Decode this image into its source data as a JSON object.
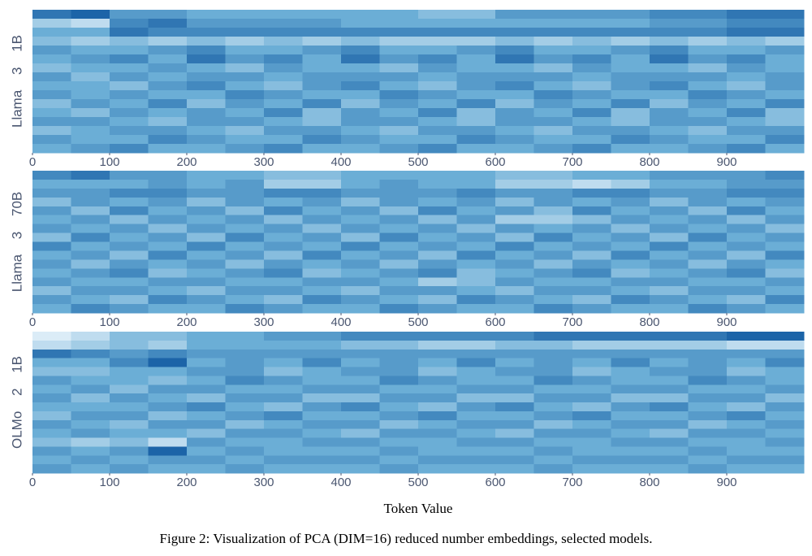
{
  "caption": "Figure 2: Visualization of PCA (DIM=16) reduced number embeddings, selected models.",
  "colorscale": [
    "#f7fbff",
    "#6baed6",
    "#08519c"
  ],
  "chart_data": [
    {
      "type": "heatmap",
      "ylabel": "Llama 3 1B",
      "x": [
        0,
        50,
        100,
        150,
        200,
        250,
        300,
        350,
        400,
        450,
        500,
        550,
        600,
        650,
        700,
        750,
        800,
        850,
        900,
        950
      ],
      "xlim": [
        0,
        1000
      ],
      "xticks": [
        0,
        100,
        200,
        300,
        400,
        500,
        600,
        700,
        800,
        900
      ],
      "values": [
        [
          0.8,
          0.9,
          0.6,
          0.6,
          0.5,
          0.5,
          0.5,
          0.5,
          0.5,
          0.5,
          0.4,
          0.4,
          0.6,
          0.6,
          0.6,
          0.6,
          0.7,
          0.7,
          0.8,
          0.8
        ],
        [
          0.3,
          0.2,
          0.7,
          0.8,
          0.6,
          0.6,
          0.6,
          0.6,
          0.5,
          0.5,
          0.5,
          0.5,
          0.5,
          0.5,
          0.5,
          0.5,
          0.6,
          0.6,
          0.7,
          0.7
        ],
        [
          0.5,
          0.5,
          0.8,
          0.7,
          0.7,
          0.7,
          0.7,
          0.7,
          0.7,
          0.7,
          0.7,
          0.7,
          0.7,
          0.7,
          0.7,
          0.7,
          0.7,
          0.7,
          0.8,
          0.8
        ],
        [
          0.4,
          0.3,
          0.4,
          0.3,
          0.4,
          0.3,
          0.4,
          0.3,
          0.4,
          0.3,
          0.3,
          0.3,
          0.4,
          0.3,
          0.4,
          0.3,
          0.4,
          0.3,
          0.4,
          0.3
        ],
        [
          0.6,
          0.5,
          0.5,
          0.6,
          0.7,
          0.5,
          0.5,
          0.6,
          0.7,
          0.5,
          0.5,
          0.6,
          0.7,
          0.5,
          0.5,
          0.6,
          0.7,
          0.5,
          0.5,
          0.6
        ],
        [
          0.5,
          0.6,
          0.7,
          0.5,
          0.8,
          0.6,
          0.7,
          0.5,
          0.8,
          0.6,
          0.7,
          0.5,
          0.8,
          0.6,
          0.7,
          0.5,
          0.8,
          0.6,
          0.7,
          0.5
        ],
        [
          0.4,
          0.5,
          0.5,
          0.6,
          0.5,
          0.4,
          0.6,
          0.5,
          0.5,
          0.4,
          0.6,
          0.5,
          0.5,
          0.4,
          0.6,
          0.5,
          0.5,
          0.4,
          0.6,
          0.5
        ],
        [
          0.6,
          0.4,
          0.6,
          0.5,
          0.6,
          0.6,
          0.5,
          0.6,
          0.6,
          0.6,
          0.5,
          0.6,
          0.6,
          0.6,
          0.5,
          0.6,
          0.6,
          0.6,
          0.5,
          0.6
        ],
        [
          0.5,
          0.5,
          0.4,
          0.6,
          0.7,
          0.5,
          0.4,
          0.6,
          0.7,
          0.5,
          0.4,
          0.6,
          0.7,
          0.5,
          0.4,
          0.6,
          0.7,
          0.5,
          0.4,
          0.6
        ],
        [
          0.6,
          0.5,
          0.6,
          0.5,
          0.5,
          0.7,
          0.6,
          0.5,
          0.5,
          0.7,
          0.6,
          0.5,
          0.5,
          0.7,
          0.6,
          0.5,
          0.5,
          0.7,
          0.6,
          0.5
        ],
        [
          0.4,
          0.6,
          0.5,
          0.7,
          0.4,
          0.6,
          0.5,
          0.7,
          0.4,
          0.6,
          0.5,
          0.7,
          0.4,
          0.6,
          0.5,
          0.7,
          0.4,
          0.6,
          0.5,
          0.7
        ],
        [
          0.5,
          0.4,
          0.6,
          0.5,
          0.6,
          0.5,
          0.7,
          0.4,
          0.6,
          0.5,
          0.7,
          0.4,
          0.6,
          0.5,
          0.7,
          0.4,
          0.6,
          0.5,
          0.7,
          0.4
        ],
        [
          0.6,
          0.6,
          0.5,
          0.4,
          0.6,
          0.6,
          0.5,
          0.4,
          0.6,
          0.6,
          0.5,
          0.4,
          0.6,
          0.6,
          0.5,
          0.4,
          0.6,
          0.6,
          0.5,
          0.4
        ],
        [
          0.4,
          0.5,
          0.6,
          0.6,
          0.5,
          0.4,
          0.6,
          0.6,
          0.5,
          0.4,
          0.6,
          0.6,
          0.5,
          0.4,
          0.6,
          0.6,
          0.5,
          0.4,
          0.6,
          0.6
        ],
        [
          0.6,
          0.5,
          0.5,
          0.7,
          0.6,
          0.5,
          0.5,
          0.7,
          0.6,
          0.5,
          0.5,
          0.7,
          0.6,
          0.5,
          0.5,
          0.7,
          0.6,
          0.5,
          0.5,
          0.7
        ],
        [
          0.5,
          0.6,
          0.7,
          0.5,
          0.5,
          0.6,
          0.7,
          0.5,
          0.5,
          0.6,
          0.7,
          0.5,
          0.5,
          0.6,
          0.7,
          0.5,
          0.5,
          0.6,
          0.7,
          0.5
        ]
      ]
    },
    {
      "type": "heatmap",
      "ylabel": "Llama 3 70B",
      "x": [
        0,
        50,
        100,
        150,
        200,
        250,
        300,
        350,
        400,
        450,
        500,
        550,
        600,
        650,
        700,
        750,
        800,
        850,
        900,
        950
      ],
      "xlim": [
        0,
        1000
      ],
      "xticks": [
        0,
        100,
        200,
        300,
        400,
        500,
        600,
        700,
        800,
        900
      ],
      "values": [
        [
          0.7,
          0.8,
          0.6,
          0.6,
          0.5,
          0.5,
          0.4,
          0.4,
          0.5,
          0.5,
          0.5,
          0.5,
          0.4,
          0.4,
          0.5,
          0.5,
          0.6,
          0.6,
          0.6,
          0.7
        ],
        [
          0.5,
          0.5,
          0.5,
          0.6,
          0.5,
          0.6,
          0.3,
          0.3,
          0.5,
          0.6,
          0.5,
          0.5,
          0.3,
          0.3,
          0.2,
          0.3,
          0.5,
          0.5,
          0.6,
          0.6
        ],
        [
          0.6,
          0.6,
          0.7,
          0.7,
          0.6,
          0.6,
          0.7,
          0.7,
          0.6,
          0.6,
          0.6,
          0.7,
          0.6,
          0.6,
          0.7,
          0.7,
          0.6,
          0.6,
          0.7,
          0.7
        ],
        [
          0.4,
          0.6,
          0.5,
          0.6,
          0.4,
          0.6,
          0.5,
          0.6,
          0.4,
          0.6,
          0.5,
          0.6,
          0.4,
          0.6,
          0.5,
          0.6,
          0.4,
          0.6,
          0.5,
          0.6
        ],
        [
          0.6,
          0.4,
          0.7,
          0.5,
          0.6,
          0.4,
          0.7,
          0.5,
          0.6,
          0.4,
          0.7,
          0.5,
          0.6,
          0.4,
          0.7,
          0.5,
          0.6,
          0.4,
          0.7,
          0.5
        ],
        [
          0.5,
          0.6,
          0.4,
          0.6,
          0.5,
          0.6,
          0.4,
          0.6,
          0.5,
          0.6,
          0.4,
          0.6,
          0.3,
          0.3,
          0.4,
          0.6,
          0.5,
          0.6,
          0.4,
          0.6
        ],
        [
          0.6,
          0.5,
          0.6,
          0.4,
          0.6,
          0.5,
          0.6,
          0.4,
          0.6,
          0.5,
          0.6,
          0.4,
          0.6,
          0.5,
          0.6,
          0.4,
          0.6,
          0.5,
          0.6,
          0.4
        ],
        [
          0.4,
          0.7,
          0.5,
          0.6,
          0.4,
          0.7,
          0.5,
          0.6,
          0.4,
          0.7,
          0.5,
          0.6,
          0.4,
          0.7,
          0.5,
          0.6,
          0.4,
          0.7,
          0.5,
          0.6
        ],
        [
          0.7,
          0.5,
          0.6,
          0.5,
          0.7,
          0.5,
          0.6,
          0.5,
          0.7,
          0.5,
          0.6,
          0.5,
          0.7,
          0.5,
          0.6,
          0.5,
          0.7,
          0.5,
          0.6,
          0.5
        ],
        [
          0.5,
          0.6,
          0.4,
          0.7,
          0.5,
          0.6,
          0.4,
          0.7,
          0.5,
          0.6,
          0.4,
          0.7,
          0.5,
          0.6,
          0.4,
          0.7,
          0.5,
          0.6,
          0.4,
          0.7
        ],
        [
          0.6,
          0.4,
          0.6,
          0.5,
          0.6,
          0.4,
          0.6,
          0.5,
          0.6,
          0.4,
          0.6,
          0.5,
          0.6,
          0.4,
          0.6,
          0.5,
          0.6,
          0.4,
          0.6,
          0.5
        ],
        [
          0.5,
          0.6,
          0.7,
          0.4,
          0.5,
          0.6,
          0.7,
          0.4,
          0.5,
          0.6,
          0.7,
          0.4,
          0.5,
          0.6,
          0.7,
          0.4,
          0.5,
          0.6,
          0.7,
          0.4
        ],
        [
          0.6,
          0.5,
          0.5,
          0.6,
          0.6,
          0.5,
          0.5,
          0.6,
          0.6,
          0.5,
          0.3,
          0.4,
          0.6,
          0.5,
          0.5,
          0.6,
          0.6,
          0.5,
          0.5,
          0.6
        ],
        [
          0.4,
          0.6,
          0.6,
          0.5,
          0.4,
          0.6,
          0.6,
          0.5,
          0.4,
          0.6,
          0.6,
          0.5,
          0.4,
          0.6,
          0.6,
          0.5,
          0.4,
          0.6,
          0.6,
          0.5
        ],
        [
          0.6,
          0.5,
          0.4,
          0.7,
          0.6,
          0.5,
          0.4,
          0.7,
          0.6,
          0.5,
          0.4,
          0.7,
          0.6,
          0.5,
          0.4,
          0.7,
          0.6,
          0.5,
          0.4,
          0.7
        ],
        [
          0.5,
          0.7,
          0.6,
          0.5,
          0.5,
          0.7,
          0.6,
          0.5,
          0.5,
          0.7,
          0.6,
          0.5,
          0.5,
          0.7,
          0.6,
          0.5,
          0.5,
          0.7,
          0.6,
          0.5
        ]
      ]
    },
    {
      "type": "heatmap",
      "ylabel": "OLMo 2 1B",
      "xlabel": "Token Value",
      "x": [
        0,
        50,
        100,
        150,
        200,
        250,
        300,
        350,
        400,
        450,
        500,
        550,
        600,
        650,
        700,
        750,
        800,
        850,
        900,
        950
      ],
      "xlim": [
        0,
        1000
      ],
      "xticks": [
        0,
        100,
        200,
        300,
        400,
        500,
        600,
        700,
        800,
        900
      ],
      "values": [
        [
          0.1,
          0.2,
          0.4,
          0.4,
          0.5,
          0.5,
          0.6,
          0.6,
          0.7,
          0.7,
          0.7,
          0.7,
          0.7,
          0.8,
          0.8,
          0.8,
          0.8,
          0.8,
          0.9,
          0.9
        ],
        [
          0.2,
          0.3,
          0.4,
          0.3,
          0.5,
          0.5,
          0.5,
          0.5,
          0.4,
          0.4,
          0.3,
          0.3,
          0.4,
          0.4,
          0.3,
          0.3,
          0.3,
          0.3,
          0.2,
          0.2
        ],
        [
          0.8,
          0.7,
          0.6,
          0.7,
          0.6,
          0.6,
          0.6,
          0.6,
          0.6,
          0.6,
          0.6,
          0.6,
          0.6,
          0.6,
          0.6,
          0.6,
          0.6,
          0.6,
          0.6,
          0.6
        ],
        [
          0.5,
          0.5,
          0.7,
          0.9,
          0.5,
          0.6,
          0.5,
          0.7,
          0.5,
          0.6,
          0.5,
          0.7,
          0.5,
          0.6,
          0.5,
          0.7,
          0.5,
          0.6,
          0.5,
          0.7
        ],
        [
          0.4,
          0.4,
          0.5,
          0.5,
          0.6,
          0.6,
          0.4,
          0.5,
          0.6,
          0.6,
          0.4,
          0.5,
          0.6,
          0.6,
          0.4,
          0.5,
          0.6,
          0.6,
          0.4,
          0.5
        ],
        [
          0.6,
          0.5,
          0.5,
          0.4,
          0.5,
          0.7,
          0.6,
          0.5,
          0.5,
          0.7,
          0.6,
          0.5,
          0.5,
          0.7,
          0.6,
          0.5,
          0.5,
          0.7,
          0.6,
          0.5
        ],
        [
          0.5,
          0.6,
          0.4,
          0.6,
          0.6,
          0.5,
          0.5,
          0.6,
          0.6,
          0.5,
          0.5,
          0.6,
          0.6,
          0.5,
          0.5,
          0.6,
          0.6,
          0.5,
          0.5,
          0.6
        ],
        [
          0.6,
          0.4,
          0.6,
          0.5,
          0.4,
          0.6,
          0.6,
          0.4,
          0.4,
          0.6,
          0.6,
          0.4,
          0.4,
          0.6,
          0.6,
          0.4,
          0.4,
          0.6,
          0.6,
          0.4
        ],
        [
          0.5,
          0.5,
          0.5,
          0.6,
          0.7,
          0.5,
          0.4,
          0.6,
          0.7,
          0.5,
          0.4,
          0.6,
          0.7,
          0.5,
          0.4,
          0.6,
          0.7,
          0.5,
          0.4,
          0.6
        ],
        [
          0.4,
          0.6,
          0.6,
          0.4,
          0.5,
          0.6,
          0.7,
          0.5,
          0.5,
          0.6,
          0.7,
          0.5,
          0.5,
          0.6,
          0.7,
          0.5,
          0.5,
          0.6,
          0.7,
          0.5
        ],
        [
          0.6,
          0.5,
          0.4,
          0.6,
          0.6,
          0.4,
          0.5,
          0.6,
          0.6,
          0.4,
          0.5,
          0.6,
          0.6,
          0.4,
          0.5,
          0.6,
          0.6,
          0.4,
          0.5,
          0.6
        ],
        [
          0.5,
          0.6,
          0.5,
          0.5,
          0.4,
          0.6,
          0.6,
          0.5,
          0.4,
          0.6,
          0.6,
          0.5,
          0.4,
          0.6,
          0.6,
          0.5,
          0.4,
          0.6,
          0.6,
          0.5
        ],
        [
          0.4,
          0.3,
          0.4,
          0.2,
          0.6,
          0.5,
          0.5,
          0.6,
          0.6,
          0.5,
          0.5,
          0.6,
          0.6,
          0.5,
          0.5,
          0.6,
          0.6,
          0.5,
          0.5,
          0.6
        ],
        [
          0.6,
          0.5,
          0.6,
          0.9,
          0.5,
          0.6,
          0.5,
          0.5,
          0.5,
          0.6,
          0.5,
          0.5,
          0.5,
          0.6,
          0.5,
          0.5,
          0.5,
          0.6,
          0.5,
          0.5
        ],
        [
          0.5,
          0.6,
          0.5,
          0.6,
          0.6,
          0.5,
          0.6,
          0.6,
          0.6,
          0.5,
          0.6,
          0.6,
          0.6,
          0.5,
          0.6,
          0.6,
          0.6,
          0.5,
          0.6,
          0.6
        ],
        [
          0.6,
          0.5,
          0.6,
          0.5,
          0.5,
          0.6,
          0.5,
          0.5,
          0.5,
          0.6,
          0.5,
          0.5,
          0.5,
          0.6,
          0.5,
          0.5,
          0.5,
          0.6,
          0.5,
          0.5
        ]
      ]
    }
  ]
}
